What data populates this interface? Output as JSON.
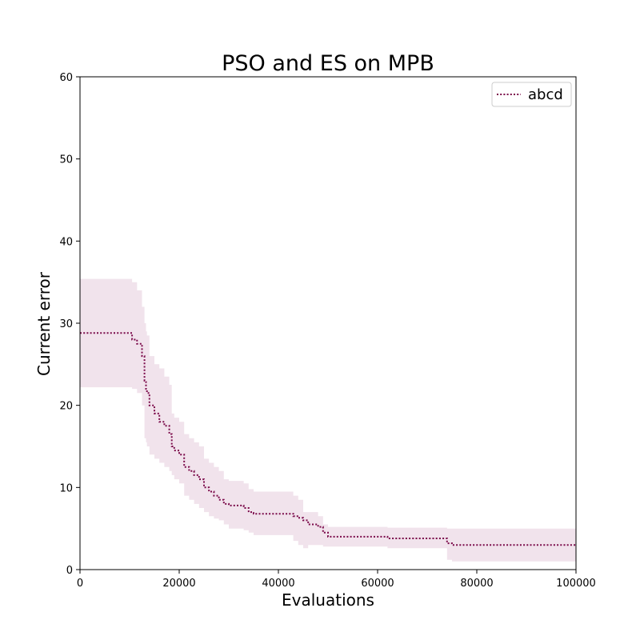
{
  "chart_data": {
    "type": "line",
    "title": "PSO and ES on MPB",
    "xlabel": "Evaluations",
    "ylabel": "Current error",
    "xlim": [
      0,
      100000
    ],
    "ylim": [
      0,
      60
    ],
    "x_ticks": [
      0,
      20000,
      40000,
      60000,
      80000,
      100000
    ],
    "y_ticks": [
      0,
      10,
      20,
      30,
      40,
      50,
      60
    ],
    "grid": false,
    "legend_position": "top-right",
    "series": [
      {
        "name": "abcd",
        "color": "#7b0a4a",
        "band_color": "#f1e3ec",
        "line_style": "dotted",
        "x": [
          0,
          10000,
          10500,
          11500,
          12500,
          13000,
          13300,
          13500,
          14000,
          15000,
          16000,
          17000,
          18000,
          18500,
          19000,
          20000,
          21000,
          22000,
          23000,
          24000,
          25000,
          26000,
          27000,
          28000,
          29000,
          30000,
          33000,
          34000,
          35000,
          42000,
          43000,
          44000,
          45000,
          46000,
          48000,
          49000,
          50000,
          60000,
          61000,
          62000,
          73000,
          74000,
          75000,
          100000
        ],
        "y": [
          28.8,
          28.8,
          28.0,
          27.5,
          26.0,
          23.0,
          22.0,
          21.5,
          20.0,
          19.0,
          18.0,
          17.5,
          16.5,
          15.0,
          14.5,
          14.0,
          12.5,
          12.0,
          11.5,
          11.0,
          10.0,
          9.5,
          9.0,
          8.5,
          8.0,
          7.8,
          7.5,
          7.0,
          6.8,
          6.8,
          6.5,
          6.3,
          6.0,
          5.5,
          5.2,
          4.5,
          4.0,
          4.0,
          4.0,
          3.8,
          3.8,
          3.2,
          3.0,
          3.0
        ],
        "y_upper": [
          35.4,
          35.4,
          35.0,
          34.0,
          32.0,
          30.0,
          29.0,
          28.5,
          26.0,
          25.0,
          24.5,
          23.5,
          22.5,
          19.0,
          18.5,
          18.0,
          16.5,
          16.0,
          15.5,
          15.0,
          13.5,
          13.0,
          12.5,
          12.0,
          11.0,
          10.8,
          10.5,
          9.8,
          9.5,
          9.5,
          9.0,
          8.5,
          7.0,
          7.0,
          6.5,
          5.5,
          5.2,
          5.2,
          5.2,
          5.1,
          5.1,
          5.0,
          5.0,
          5.0
        ],
        "y_lower": [
          22.2,
          22.2,
          22.0,
          21.5,
          20.0,
          16.0,
          15.5,
          15.0,
          14.0,
          13.5,
          13.0,
          12.5,
          12.0,
          11.5,
          11.0,
          10.5,
          9.0,
          8.5,
          8.0,
          7.5,
          7.0,
          6.5,
          6.2,
          6.0,
          5.5,
          5.0,
          4.8,
          4.5,
          4.2,
          4.2,
          3.5,
          3.0,
          2.6,
          3.0,
          3.0,
          2.8,
          2.8,
          2.8,
          2.8,
          2.6,
          2.6,
          1.2,
          1.0,
          1.0
        ]
      }
    ]
  }
}
